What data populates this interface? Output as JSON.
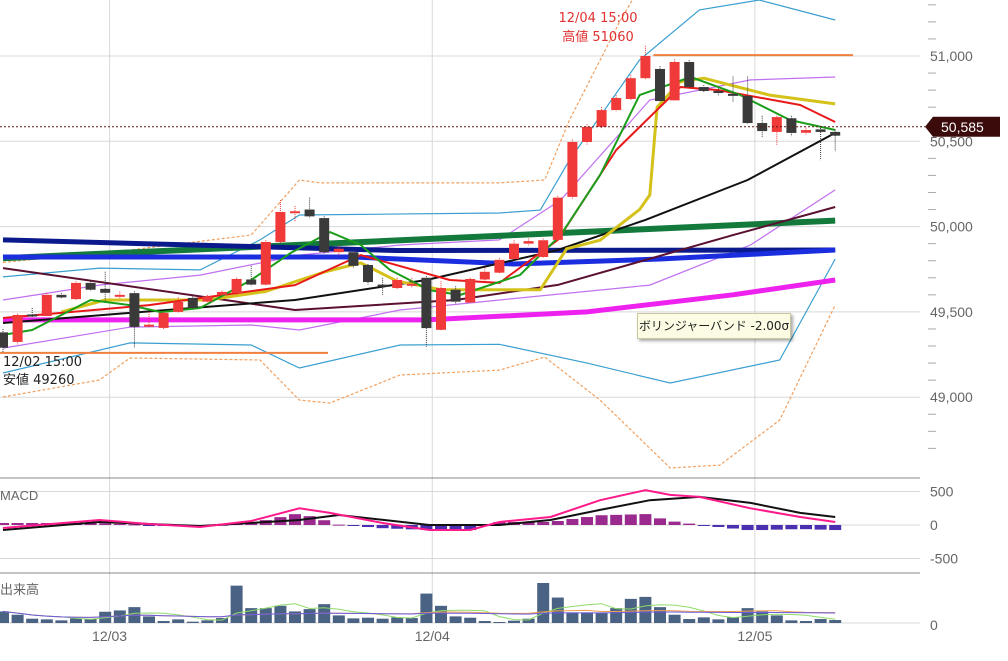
{
  "chart_data": {
    "type": "candlestick",
    "price_axis": {
      "ticks": [
        51000,
        50500,
        50000,
        49500,
        49000
      ],
      "tick_labels": [
        "51,000",
        "50,500",
        "50,000",
        "49,500",
        "49,000"
      ],
      "minor_step": 100
    },
    "x_ticks": [
      {
        "label": "12/03",
        "index": 7.3
      },
      {
        "label": "12/04",
        "index": 29.4
      },
      {
        "label": "12/05",
        "index": 51.5
      }
    ],
    "current_price": 50585,
    "current_price_label": "50,585",
    "high": {
      "value": 51060,
      "index": 44,
      "time_label": "12/04 15:00",
      "label": "高値 51060"
    },
    "low": {
      "value": 49260,
      "index": 0,
      "time_label": "12/02 15:00",
      "label": "安値 49260"
    },
    "candles": [
      [
        49380,
        49400,
        49260,
        49290
      ],
      [
        49324,
        49490,
        49310,
        49482
      ],
      [
        49485,
        49523,
        49470,
        49475
      ],
      [
        49476,
        49610,
        49470,
        49600
      ],
      [
        49600,
        49610,
        49580,
        49585
      ],
      [
        49575,
        49680,
        49570,
        49670
      ],
      [
        49670,
        49680,
        49620,
        49630
      ],
      [
        49635,
        49735,
        49560,
        49612
      ],
      [
        49595,
        49620,
        49580,
        49600
      ],
      [
        49610,
        49620,
        49290,
        49412
      ],
      [
        49420,
        49500,
        49405,
        49425
      ],
      [
        49406,
        49500,
        49400,
        49494
      ],
      [
        49500,
        49585,
        49495,
        49558
      ],
      [
        49582,
        49590,
        49515,
        49523
      ],
      [
        49560,
        49600,
        49550,
        49590
      ],
      [
        49600,
        49625,
        49595,
        49617
      ],
      [
        49610,
        49700,
        49600,
        49693
      ],
      [
        49690,
        49770,
        49650,
        49660
      ],
      [
        49660,
        49920,
        49655,
        49910
      ],
      [
        49910,
        50156,
        49905,
        50086
      ],
      [
        50080,
        50120,
        50030,
        50090
      ],
      [
        50100,
        50170,
        50050,
        50060
      ],
      [
        50050,
        50060,
        49840,
        49850
      ],
      [
        49850,
        49890,
        49830,
        49870
      ],
      [
        49850,
        49860,
        49760,
        49770
      ],
      [
        49775,
        49780,
        49660,
        49675
      ],
      [
        49660,
        49700,
        49600,
        49650
      ],
      [
        49640,
        49700,
        49630,
        49687
      ],
      [
        49660,
        49700,
        49640,
        49665
      ],
      [
        49700,
        49710,
        49295,
        49405
      ],
      [
        49395,
        49680,
        49390,
        49640
      ],
      [
        49630,
        49650,
        49550,
        49560
      ],
      [
        49555,
        49700,
        49550,
        49693
      ],
      [
        49690,
        49760,
        49685,
        49735
      ],
      [
        49730,
        49815,
        49725,
        49805
      ],
      [
        49810,
        49920,
        49805,
        49900
      ],
      [
        49900,
        49930,
        49890,
        49915
      ],
      [
        49822,
        49930,
        49815,
        49920
      ],
      [
        49922,
        50180,
        49915,
        50170
      ],
      [
        50174,
        50510,
        50160,
        50496
      ],
      [
        50496,
        50600,
        50480,
        50584
      ],
      [
        50585,
        50700,
        50575,
        50683
      ],
      [
        50683,
        50770,
        50675,
        50754
      ],
      [
        50748,
        50890,
        50740,
        50870
      ],
      [
        50870,
        51060,
        50860,
        51000
      ],
      [
        50924,
        50940,
        50730,
        50736
      ],
      [
        50740,
        50980,
        50735,
        50965
      ],
      [
        50965,
        50975,
        50810,
        50818
      ],
      [
        50818,
        50830,
        50790,
        50795
      ],
      [
        50795,
        50810,
        50770,
        50783
      ],
      [
        50778,
        50880,
        50730,
        50770
      ],
      [
        50766,
        50880,
        50600,
        50607
      ],
      [
        50607,
        50650,
        50520,
        50560
      ],
      [
        50555,
        50650,
        50480,
        50642
      ],
      [
        50635,
        50650,
        50530,
        50549
      ],
      [
        50550,
        50580,
        50540,
        50566
      ],
      [
        50570,
        50590,
        50390,
        50555
      ],
      [
        50555,
        50570,
        50440,
        50533
      ]
    ],
    "overlays": [
      {
        "color": "#147a3c",
        "width": 6,
        "points": [
          [
            0,
            49815
          ],
          [
            57,
            50035
          ]
        ]
      },
      {
        "color": "#0a1a8c",
        "width": 5,
        "points": [
          [
            0,
            49922
          ],
          [
            27,
            49860
          ],
          [
            57,
            49863
          ]
        ]
      },
      {
        "color": "#1a2ee0",
        "width": 5,
        "points": [
          [
            0,
            49822
          ],
          [
            24,
            49822
          ],
          [
            35,
            49781
          ],
          [
            45,
            49810
          ],
          [
            57,
            49863
          ]
        ]
      },
      {
        "color": "#ee22ee",
        "width": 5,
        "points": [
          [
            0,
            49453
          ],
          [
            29,
            49453
          ],
          [
            40,
            49500
          ],
          [
            50,
            49600
          ],
          [
            57,
            49687
          ]
        ]
      },
      {
        "color": "#5a1030",
        "width": 2,
        "points": [
          [
            0,
            49757
          ],
          [
            20,
            49511
          ],
          [
            31,
            49570
          ],
          [
            38,
            49658
          ],
          [
            50,
            49950
          ],
          [
            57,
            50115
          ]
        ]
      },
      {
        "color": "#111111",
        "width": 2,
        "points": [
          [
            0,
            49435
          ],
          [
            11,
            49510
          ],
          [
            20,
            49570
          ],
          [
            29,
            49687
          ],
          [
            38,
            49863
          ],
          [
            44,
            50039
          ],
          [
            51,
            50273
          ],
          [
            57,
            50549
          ]
        ]
      },
      {
        "color": "#d4c21a",
        "width": 3,
        "points": [
          [
            4,
            49500
          ],
          [
            7,
            49570
          ],
          [
            14,
            49570
          ],
          [
            18,
            49620
          ],
          [
            22,
            49734
          ],
          [
            24.5,
            49787
          ],
          [
            27,
            49680
          ],
          [
            30,
            49630
          ],
          [
            36.8,
            49630
          ],
          [
            38.6,
            49870
          ],
          [
            40.9,
            49920
          ],
          [
            43.6,
            50100
          ],
          [
            44.3,
            50185
          ],
          [
            44.8,
            50700
          ],
          [
            46.4,
            50850
          ],
          [
            48,
            50870
          ],
          [
            52.5,
            50771
          ],
          [
            57,
            50719
          ]
        ]
      },
      {
        "color": "#e81818",
        "width": 2,
        "points": [
          [
            0,
            49464
          ],
          [
            10,
            49540
          ],
          [
            20,
            49657
          ],
          [
            24.5,
            49833
          ],
          [
            30.6,
            49687
          ],
          [
            34,
            49670
          ],
          [
            38,
            49922
          ],
          [
            42,
            50449
          ],
          [
            46.4,
            50818
          ],
          [
            49,
            50800
          ],
          [
            54.6,
            50713
          ],
          [
            57,
            50613
          ]
        ]
      },
      {
        "color": "#1a9e1a",
        "width": 2,
        "points": [
          [
            0,
            49365
          ],
          [
            2,
            49394
          ],
          [
            6,
            49570
          ],
          [
            8.7,
            49540
          ],
          [
            10.8,
            49499
          ],
          [
            13.5,
            49523
          ],
          [
            17,
            49687
          ],
          [
            19.7,
            49845
          ],
          [
            22.4,
            49968
          ],
          [
            24.5,
            49892
          ],
          [
            26.5,
            49746
          ],
          [
            29.2,
            49628
          ],
          [
            31.3,
            49599
          ],
          [
            35.4,
            49716
          ],
          [
            38.2,
            49951
          ],
          [
            40.9,
            50302
          ],
          [
            43.6,
            50771
          ],
          [
            47.1,
            50877
          ],
          [
            50.5,
            50771
          ],
          [
            53.9,
            50625
          ],
          [
            57,
            50566
          ]
        ]
      }
    ],
    "bollinger": [
      {
        "name": "+1σ",
        "color": "#c070f0",
        "dash": false,
        "points": [
          [
            0,
            49570
          ],
          [
            6.6,
            49657
          ],
          [
            13.5,
            49716
          ],
          [
            20.3,
            49833
          ],
          [
            27.2,
            49892
          ],
          [
            34,
            49922
          ],
          [
            38.2,
            50156
          ],
          [
            44.3,
            50742
          ],
          [
            51.2,
            50860
          ],
          [
            57,
            50877
          ]
        ]
      },
      {
        "name": "-1σ",
        "color": "#c070f0",
        "dash": false,
        "points": [
          [
            0,
            49288
          ],
          [
            8.7,
            49411
          ],
          [
            17,
            49423
          ],
          [
            20.3,
            49394
          ],
          [
            27.2,
            49511
          ],
          [
            34,
            49570
          ],
          [
            44.3,
            49657
          ],
          [
            51.2,
            49892
          ],
          [
            57,
            50215
          ]
        ]
      },
      {
        "name": "+2σ",
        "color": "#3a9fd0",
        "dash": false,
        "points": [
          [
            0,
            49705
          ],
          [
            6.6,
            49757
          ],
          [
            13.5,
            49746
          ],
          [
            17.6,
            49922
          ],
          [
            20.3,
            50068
          ],
          [
            34,
            50080
          ],
          [
            36.8,
            50097
          ],
          [
            38.8,
            50390
          ],
          [
            43.6,
            50977
          ],
          [
            47.7,
            51270
          ],
          [
            51.8,
            51328
          ],
          [
            57,
            51211
          ]
        ]
      },
      {
        "name": "-2σ",
        "color": "#3a9fd0",
        "dash": false,
        "points": [
          [
            0,
            49142
          ],
          [
            8.7,
            49318
          ],
          [
            17,
            49306
          ],
          [
            20.3,
            49171
          ],
          [
            27.2,
            49306
          ],
          [
            34,
            49310
          ],
          [
            40,
            49200
          ],
          [
            45.7,
            49083
          ],
          [
            53.2,
            49218
          ],
          [
            57,
            49810
          ]
        ]
      },
      {
        "name": "+3σ",
        "color": "#f0a060",
        "dash": true,
        "points": [
          [
            0,
            49790
          ],
          [
            8.7,
            49863
          ],
          [
            17,
            49951
          ],
          [
            20.3,
            50273
          ],
          [
            21.7,
            50256
          ],
          [
            34,
            50256
          ],
          [
            37.1,
            50273
          ],
          [
            38.8,
            50625
          ],
          [
            42.3,
            51211
          ],
          [
            43.6,
            51400
          ]
        ]
      },
      {
        "name": "-3σ",
        "color": "#f0a060",
        "dash": true,
        "points": [
          [
            0,
            49001
          ],
          [
            6.6,
            49101
          ],
          [
            8.7,
            49230
          ],
          [
            17.6,
            49218
          ],
          [
            20.3,
            48983
          ],
          [
            22.4,
            48966
          ],
          [
            27.2,
            49130
          ],
          [
            34,
            49159
          ],
          [
            37.1,
            49235
          ],
          [
            40.9,
            48983
          ],
          [
            45.7,
            48585
          ],
          [
            49.1,
            48602
          ],
          [
            53.2,
            48866
          ],
          [
            57,
            49540
          ]
        ]
      }
    ],
    "tooltip": "ボリンジャーバンド -2.00σ",
    "macd": {
      "label": "MACD",
      "ticks": [
        500,
        0,
        -500
      ],
      "tick_labels": [
        "500",
        "0",
        "-500"
      ],
      "macd_color": "#ff1a8c",
      "signal_color": "#111111",
      "hist_pos_color": "#9a2a8e",
      "hist_neg_color": "#4b2fb0",
      "macd": [
        [
          0,
          -45
        ],
        [
          6.6,
          75
        ],
        [
          10,
          15
        ],
        [
          13.5,
          -30
        ],
        [
          17,
          60
        ],
        [
          20.3,
          250
        ],
        [
          22.4,
          180
        ],
        [
          26,
          30
        ],
        [
          29.2,
          -75
        ],
        [
          32,
          -75
        ],
        [
          34,
          45
        ],
        [
          37.5,
          120
        ],
        [
          40.9,
          370
        ],
        [
          44,
          520
        ],
        [
          45.7,
          450
        ],
        [
          47.7,
          420
        ],
        [
          51.2,
          250
        ],
        [
          54.6,
          120
        ],
        [
          57,
          45
        ]
      ],
      "signal": [
        [
          0,
          -75
        ],
        [
          6.6,
          45
        ],
        [
          13.5,
          -15
        ],
        [
          20.3,
          75
        ],
        [
          23,
          150
        ],
        [
          29.2,
          0
        ],
        [
          34,
          0
        ],
        [
          37.5,
          75
        ],
        [
          40.9,
          225
        ],
        [
          44.3,
          370
        ],
        [
          47.7,
          420
        ],
        [
          51.2,
          330
        ],
        [
          54.6,
          180
        ],
        [
          57,
          120
        ]
      ]
    },
    "volume": {
      "label": "出来高",
      "zero_label": "0",
      "bar_color": "#4a6283",
      "values": [
        35,
        25,
        13,
        11,
        8,
        14,
        12,
        34,
        38,
        48,
        20,
        6,
        11,
        4,
        8,
        15,
        113,
        45,
        45,
        52,
        35,
        42,
        57,
        23,
        14,
        16,
        13,
        17,
        15,
        89,
        52,
        20,
        16,
        6,
        3,
        7,
        13,
        121,
        77,
        32,
        32,
        30,
        45,
        73,
        79,
        48,
        25,
        12,
        17,
        11,
        17,
        45,
        35,
        23,
        8,
        6,
        12,
        9
      ]
    },
    "colors": {
      "up": "#f03a3a",
      "down": "#3a3a3a",
      "grid": "#d8d8d8",
      "axis_text": "#666666",
      "high_label": "#e03030",
      "price_tag": "#3b0b0b",
      "extreme_line": "#f08040"
    }
  }
}
